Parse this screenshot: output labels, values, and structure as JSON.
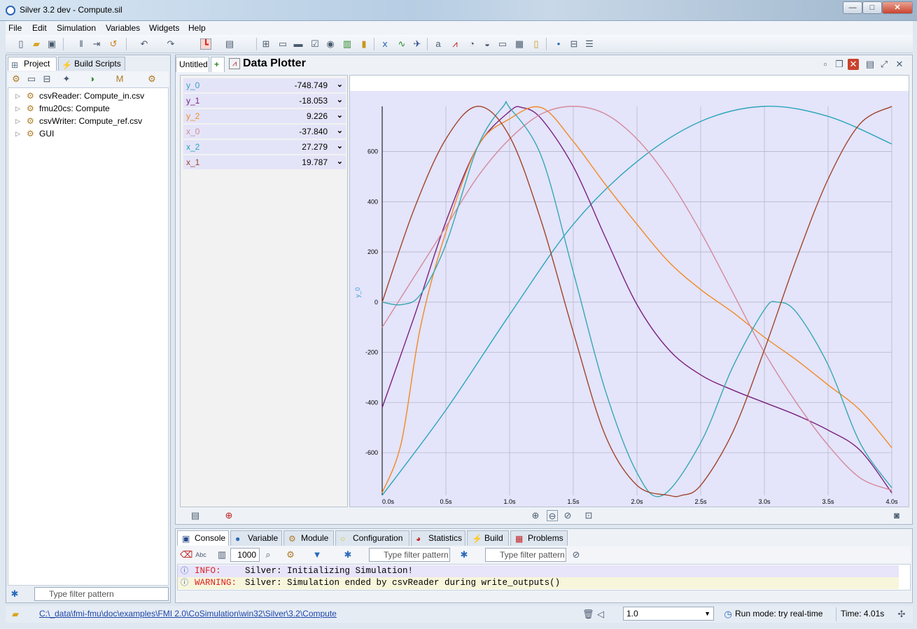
{
  "window": {
    "title": "Silver 3.2 dev - Compute.sil",
    "buttons": [
      "—",
      "□",
      "✕"
    ]
  },
  "menu": [
    "File",
    "Edit",
    "Simulation",
    "Variables",
    "Widgets",
    "Help"
  ],
  "left_panel": {
    "tabs": [
      "Project",
      "Build Scripts"
    ],
    "tree": [
      "csvReader: Compute_in.csv",
      "fmu20cs: Compute",
      "csvWriter: Compute_ref.csv",
      "GUI"
    ],
    "filter_placeholder": "Type filter pattern"
  },
  "editor": {
    "tabs": [
      "Untitled"
    ],
    "plotter_title": "Data Plotter",
    "variables": [
      {
        "name": "y_0",
        "value": "-748.749",
        "color": "#3a9fc9"
      },
      {
        "name": "y_1",
        "value": "-18.053",
        "color": "#7a1f7d"
      },
      {
        "name": "y_2",
        "value": "9.226",
        "color": "#f08a24"
      },
      {
        "name": "x_0",
        "value": "-37.840",
        "color": "#d48a9a"
      },
      {
        "name": "x_2",
        "value": "27.279",
        "color": "#2aa2b8"
      },
      {
        "name": "x_1",
        "value": "19.787",
        "color": "#a0442a"
      }
    ]
  },
  "chart_data": {
    "type": "line",
    "ylabel": "y_0",
    "xlabel": "",
    "x_ticks": [
      "0.0s",
      "0.5s",
      "1.0s",
      "1.5s",
      "2.0s",
      "2.5s",
      "3.0s",
      "3.5s",
      "4.0s"
    ],
    "y_ticks": [
      "600",
      "400",
      "200",
      "0",
      "-200",
      "-400",
      "-600"
    ],
    "xlim": [
      0,
      4
    ],
    "ylim": [
      -770,
      780
    ],
    "grid": true,
    "background": "#e4e4fb",
    "series": [
      {
        "name": "y_0",
        "color": "#2aa6b9",
        "x": [
          0,
          0.5,
          1,
          1.5,
          2,
          2.5,
          3,
          3.5,
          4
        ],
        "y": [
          -770,
          -430,
          -50,
          310,
          560,
          720,
          780,
          740,
          630
        ]
      },
      {
        "name": "y_1",
        "color": "#7a1f7d",
        "x": [
          0,
          0.25,
          0.5,
          0.75,
          1,
          1.1,
          1.25,
          1.5,
          1.75,
          2,
          2.25,
          2.5,
          2.75,
          3,
          3.25,
          3.5,
          3.75,
          4
        ],
        "y": [
          -420,
          -60,
          320,
          620,
          760,
          775,
          730,
          540,
          260,
          -10,
          -190,
          -290,
          -350,
          -400,
          -450,
          -510,
          -590,
          -760
        ]
      },
      {
        "name": "y_2",
        "color": "#f08a24",
        "x": [
          0,
          0.15,
          0.3,
          0.5,
          0.75,
          1,
          1.25,
          1.5,
          1.75,
          2,
          2.25,
          2.5,
          2.75,
          3,
          3.25,
          3.5,
          3.75,
          4
        ],
        "y": [
          -760,
          -560,
          -100,
          280,
          620,
          730,
          775,
          640,
          470,
          310,
          160,
          50,
          -40,
          -140,
          -230,
          -330,
          -430,
          -580
        ]
      },
      {
        "name": "x_0",
        "color": "#d48a9a",
        "x": [
          0,
          0.25,
          0.5,
          0.75,
          1,
          1.25,
          1.5,
          1.75,
          2,
          2.25,
          2.5,
          2.75,
          3,
          3.25,
          3.5,
          3.75,
          4
        ],
        "y": [
          -100,
          100,
          300,
          500,
          650,
          750,
          780,
          750,
          650,
          490,
          280,
          40,
          -200,
          -400,
          -570,
          -700,
          -750
        ]
      },
      {
        "name": "x_2",
        "color": "#35a8b0",
        "x": [
          0,
          0.15,
          0.3,
          0.5,
          0.75,
          0.95,
          1,
          1.25,
          1.5,
          1.75,
          2,
          2.2,
          2.5,
          2.75,
          3,
          3.1,
          3.25,
          3.5,
          3.75,
          4
        ],
        "y": [
          0,
          -10,
          30,
          230,
          620,
          780,
          775,
          580,
          120,
          -350,
          -680,
          -770,
          -560,
          -260,
          -30,
          0,
          -40,
          -250,
          -560,
          -740
        ]
      },
      {
        "name": "x_1",
        "color": "#a0442a",
        "x": [
          0,
          0.25,
          0.5,
          0.75,
          1,
          1.25,
          1.5,
          1.75,
          2,
          2.25,
          2.35,
          2.5,
          2.75,
          3,
          3.25,
          3.5,
          3.75,
          4
        ],
        "y": [
          0,
          370,
          650,
          780,
          660,
          320,
          -120,
          -530,
          -730,
          -770,
          -770,
          -730,
          -520,
          -190,
          170,
          490,
          710,
          780
        ]
      }
    ]
  },
  "console": {
    "tabs": [
      "Console",
      "Variable",
      "Module",
      "Configuration",
      "Statistics",
      "Build",
      "Problems"
    ],
    "buffer_size": "1000",
    "filter_placeholder_1": "Type filter pattern",
    "filter_placeholder_2": "Type filter pattern",
    "log": [
      {
        "level": "INFO:",
        "message": "Silver: Initializing Simulation!",
        "bg": "#e8e4fa"
      },
      {
        "level": "WARNING:",
        "message": "Silver: Simulation ended by csvReader during write_outputs()",
        "bg": "#f7f5da"
      }
    ]
  },
  "statusbar": {
    "path": "C:\\_data\\fmi-fmu\\doc\\examples\\FMI 2.0\\CoSimulation\\win32\\Silver\\3.2\\Compute",
    "speed": "1.0",
    "run_mode": "Run mode: try real-time",
    "time": "Time:  4.01s"
  }
}
